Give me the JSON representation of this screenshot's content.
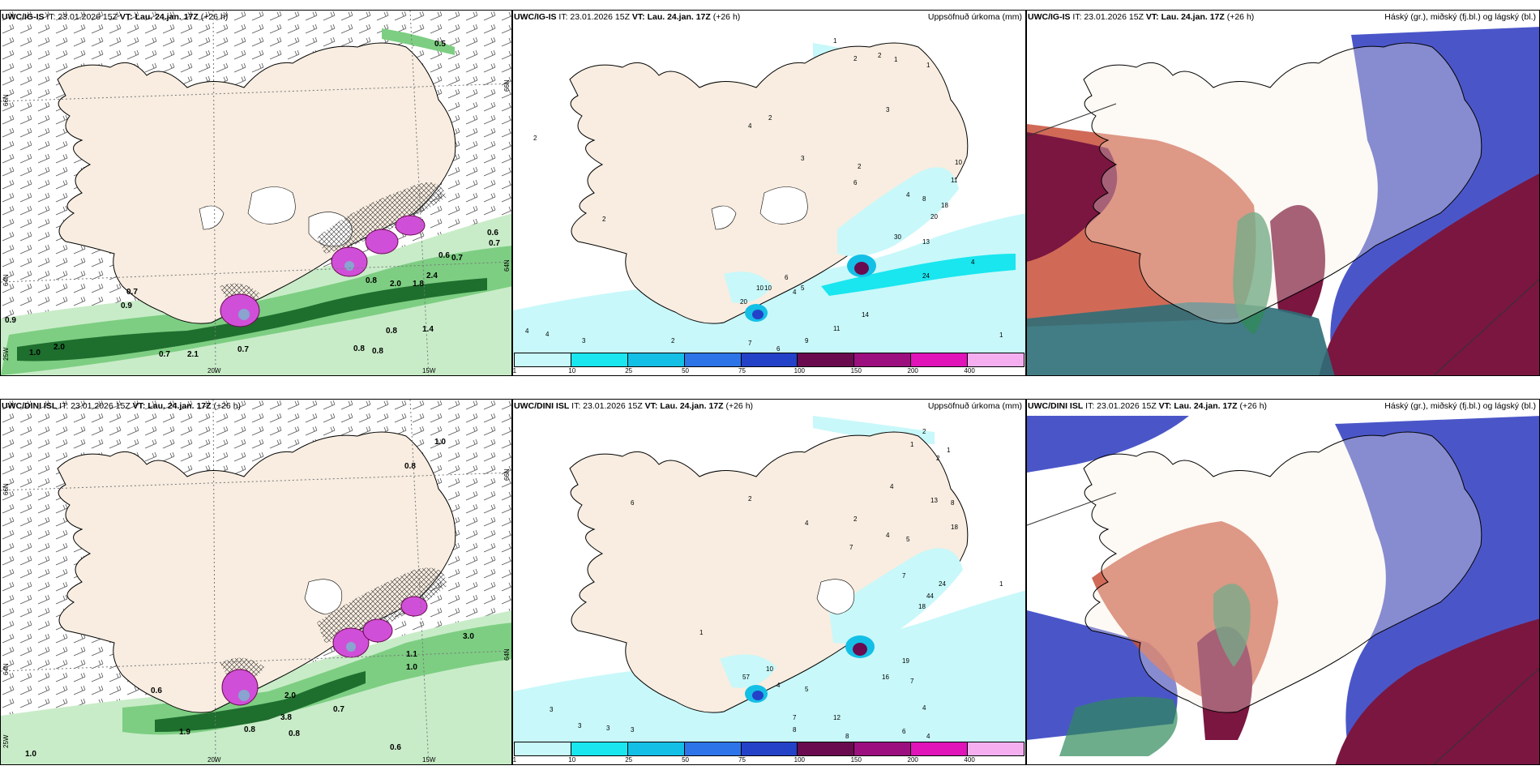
{
  "panels": {
    "tl": {
      "model": "UWC/IG-IS",
      "it": "IT: 23.01.2026 15Z",
      "vt": "VT: Lau. 24.jan. 17Z",
      "lead": "(+26 h)",
      "title": ""
    },
    "tm": {
      "model": "UWC/IG-IS",
      "it": "IT: 23.01.2026 15Z",
      "vt": "VT: Lau. 24.jan. 17Z",
      "lead": "(+26 h)",
      "title": "Uppsöfnuð úrkoma (mm)"
    },
    "tr": {
      "model": "UWC/IG-IS",
      "it": "IT: 23.01.2026 15Z",
      "vt": "VT: Lau. 24.jan. 17Z",
      "lead": "(+26 h)",
      "title": "Háský (gr.), miðský (fj.bl.) og lágský (bl.)"
    },
    "bl": {
      "model": "UWC/DINI ISL",
      "it": "IT: 23.01.2026 15Z",
      "vt": "VT: Lau. 24.jan. 17Z",
      "lead": "(+26 h)",
      "title": ""
    },
    "bm": {
      "model": "UWC/DINI ISL",
      "it": "IT: 23.01.2026 15Z",
      "vt": "VT: Lau. 24.jan. 17Z",
      "lead": "(+26 h)",
      "title": "Uppsöfnuð úrkoma (mm)"
    },
    "br": {
      "model": "UWC/DINI ISL",
      "it": "IT: 23.01.2026 15Z",
      "vt": "VT: Lau. 24.jan. 17Z",
      "lead": "(+26 h)",
      "title": "Háský (gr.), miðský (fj.bl.) og lágský (bl.)"
    }
  },
  "graticule": {
    "lat_n": "66N",
    "lat_s": "64N",
    "lat_n_right": "66N",
    "lat_s_right": "64N",
    "lon_w": "20W",
    "lon_e": "15W",
    "lon_far": "25W"
  },
  "legend": {
    "labels": [
      "1",
      "10",
      "25",
      "50",
      "75",
      "100",
      "150",
      "200",
      "400"
    ],
    "colors": [
      "#c8f8fa",
      "#19e6ef",
      "#14bfe6",
      "#2d74e8",
      "#2442c8",
      "#6a0b4f",
      "#9c0f7e",
      "#e014b8",
      "#f5aff0"
    ]
  },
  "colors": {
    "land": "#f8ede0",
    "sea": "#ffffff",
    "green_light": "#c8ecc8",
    "green_mid": "#7dce82",
    "green_dark": "#1e6e2e",
    "magenta": "#d04fd8",
    "high_cloud": "#7a1640",
    "mid_cloud": "#c8503a",
    "low_cloud": "#4a56c8"
  },
  "labels": {
    "tl": [
      "0.5",
      "0.7",
      "0.9",
      "1.0",
      "2.0",
      "0.7",
      "2.1",
      "0.7",
      "0.9",
      "0.8",
      "0.8",
      "0.8",
      "1.4",
      "0.6",
      "0.7",
      "0.6",
      "0.7",
      "2.4",
      "1.8",
      "2.0",
      "0.8"
    ],
    "bl": [
      "1.0",
      "0.8",
      "0.6",
      "1.0",
      "1.9",
      "0.8",
      "0.8",
      "3.8",
      "0.7",
      "2.0",
      "1.1",
      "1.0",
      "3.0",
      "0.6"
    ],
    "tm": [
      "1",
      "2",
      "1",
      "1",
      "2",
      "3",
      "4",
      "2",
      "3",
      "2",
      "6",
      "4",
      "8",
      "10",
      "11",
      "18",
      "20",
      "30",
      "13",
      "24",
      "4",
      "2",
      "6",
      "4",
      "5",
      "10",
      "10",
      "20",
      "4",
      "4",
      "3",
      "2",
      "7",
      "6",
      "9",
      "11",
      "14",
      "1",
      "2"
    ],
    "bm": [
      "2",
      "1",
      "1",
      "2",
      "4",
      "6",
      "2",
      "4",
      "2",
      "7",
      "4",
      "5",
      "8",
      "13",
      "18",
      "24",
      "44",
      "18",
      "7",
      "19",
      "16",
      "7",
      "4",
      "5",
      "7",
      "8",
      "12",
      "8",
      "6",
      "4",
      "3",
      "3",
      "3",
      "3",
      "57",
      "10",
      "4",
      "1",
      "1"
    ]
  }
}
